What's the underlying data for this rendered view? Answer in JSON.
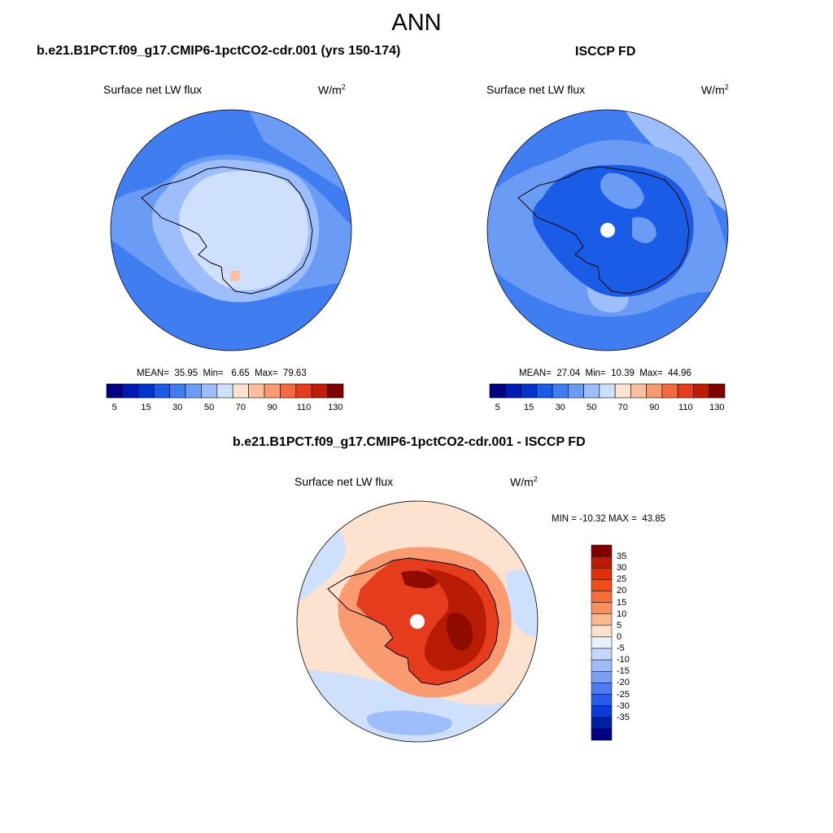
{
  "title": "ANN",
  "panels": [
    {
      "heading": "b.e21.B1PCT.f09_g17.CMIP6-1pctCO2-cdr.001 (yrs 150-174)",
      "variable": "Surface net LW flux",
      "units": "W/m",
      "units_exp": "2",
      "stats": "MEAN=  35.95  Min=   6.65  Max=  79.63"
    },
    {
      "heading": "ISCCP FD",
      "variable": "Surface net LW flux",
      "units": "W/m",
      "units_exp": "2",
      "stats": "MEAN=  27.04  Min=  10.39  Max=  44.96"
    },
    {
      "heading": "b.e21.B1PCT.f09_g17.CMIP6-1pctCO2-cdr.001 - ISCCP FD",
      "variable": "Surface net LW flux",
      "units": "W/m",
      "units_exp": "2",
      "stats": "MIN = -10.32 MAX =  43.85"
    }
  ],
  "colorbar_abs": {
    "colors": [
      "#000080",
      "#0019b3",
      "#0033cc",
      "#1a5ce6",
      "#3f7df0",
      "#6a9cf5",
      "#9dbefa",
      "#cfe0fc",
      "#fde3cf",
      "#fcc0a0",
      "#f99a70",
      "#f46a40",
      "#e43c1c",
      "#c01d06",
      "#7f0000"
    ],
    "labels": [
      "5",
      "15",
      "30",
      "50",
      "70",
      "90",
      "110",
      "130"
    ]
  },
  "colorbar_diff": {
    "colors": [
      "#7f0000",
      "#b81c04",
      "#de2e0a",
      "#f04c18",
      "#f56d38",
      "#f8915e",
      "#fab890",
      "#fde0cc",
      "#e8f0fc",
      "#c4d6fa",
      "#9fbcf7",
      "#7a9ff3",
      "#4e7cef",
      "#2a5be8",
      "#0a3bd8",
      "#00209f",
      "#000080"
    ],
    "labels": [
      "35",
      "30",
      "25",
      "20",
      "15",
      "10",
      "5",
      "0",
      "-5",
      "-10",
      "-15",
      "-20",
      "-25",
      "-30",
      "-35"
    ]
  },
  "map_colors": {
    "ocean_model": "#3f7df0",
    "mid_model": "#6a9cf5",
    "light_model": "#9dbefa",
    "ice_model": "#cfe0fc",
    "warm_spot": "#fcc0a0",
    "ocean_obs": "#3f7df0",
    "mid_obs": "#6a9cf5",
    "light_obs": "#9dbefa",
    "dark_obs": "#1a5ce6",
    "diff_bg": "#fde3cf",
    "diff_blue": "#cfe0fc",
    "diff_blue2": "#9dbefa",
    "diff_orange": "#f99a70",
    "diff_red": "#e43c1c",
    "diff_dark": "#b81c04",
    "diff_darkest": "#8e0b00",
    "coast": "#000000"
  }
}
